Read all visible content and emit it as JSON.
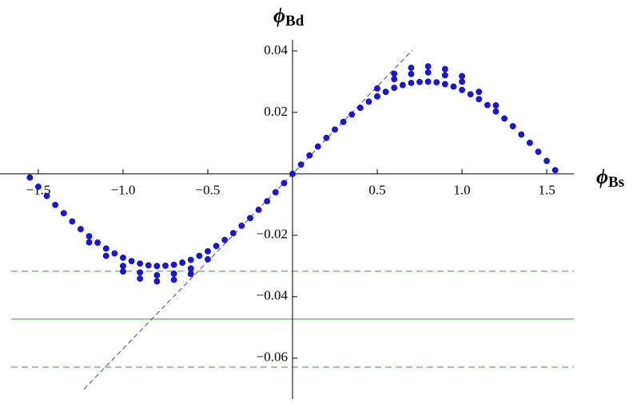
{
  "chart_data": {
    "type": "scatter",
    "x_label": {
      "symbol": "ϕ",
      "subscript": "Bs"
    },
    "y_label": {
      "symbol": "ϕ",
      "subscript": "Bd"
    },
    "xlim": [
      -1.726,
      1.66
    ],
    "ylim": [
      -0.0733,
      0.0436
    ],
    "xticks": [
      {
        "value": -1.5,
        "label": "−1.5"
      },
      {
        "value": -1.0,
        "label": "−1.0"
      },
      {
        "value": -0.5,
        "label": "−0.5"
      },
      0.5,
      {
        "value": 1.0,
        "label": "1.0"
      },
      1.5
    ],
    "yticks": [
      {
        "value": -0.06,
        "label": "−0.06"
      },
      {
        "value": -0.04,
        "label": "−0.04"
      },
      {
        "value": -0.02,
        "label": "−0.02"
      },
      0.02,
      0.04
    ],
    "series": [
      {
        "color": "#1414f0",
        "x": [
          -1.55,
          -1.5,
          -1.45,
          -1.4,
          -1.35,
          -1.3,
          -1.25,
          -1.2,
          -1.15,
          -1.1,
          -1.05,
          -1.0,
          -0.95,
          -0.9,
          -0.85,
          -0.8,
          -0.75,
          -0.7,
          -0.65,
          -0.6,
          -0.55,
          -0.5,
          -0.45,
          -0.4,
          -0.35,
          -0.3,
          -0.25,
          -0.2,
          -0.15,
          -0.1,
          -0.05,
          0,
          0.05,
          0.1,
          0.15,
          0.2,
          0.25,
          0.3,
          0.35,
          0.4,
          0.45,
          0.5,
          0.55,
          0.6,
          0.65,
          0.7,
          0.75,
          0.8,
          0.85,
          0.9,
          0.95,
          1.0,
          1.05,
          1.1,
          1.15,
          1.2,
          1.25,
          1.3,
          1.35,
          1.4,
          1.45,
          1.5,
          1.55,
          -1.2,
          -1.1,
          -1.0,
          -0.9,
          -0.8,
          -0.7,
          -0.6,
          -0.5,
          0.5,
          0.6,
          0.7,
          0.8,
          0.9,
          1.0,
          1.1,
          1.2,
          -1.0,
          -0.9,
          -0.8,
          -0.7,
          -0.6,
          0.6,
          0.7,
          0.8,
          0.9,
          1.0
        ],
        "values": [
          -0.0012,
          -0.0042,
          -0.0072,
          -0.0101,
          -0.0128,
          -0.0155,
          -0.018,
          -0.0203,
          -0.0224,
          -0.0243,
          -0.0259,
          -0.0273,
          -0.0284,
          -0.0292,
          -0.0298,
          -0.03,
          -0.0299,
          -0.0296,
          -0.0289,
          -0.028,
          -0.0267,
          -0.0252,
          -0.0235,
          -0.0215,
          -0.0193,
          -0.0169,
          -0.0144,
          -0.0117,
          -0.0089,
          -0.006,
          -0.003,
          0,
          0.003,
          0.006,
          0.0089,
          0.0117,
          0.0144,
          0.0169,
          0.0193,
          0.0215,
          0.0235,
          0.0252,
          0.0267,
          0.028,
          0.0289,
          0.0296,
          0.0299,
          0.03,
          0.0298,
          0.0292,
          0.0284,
          0.0273,
          0.0259,
          0.0243,
          0.0224,
          0.0203,
          0.018,
          0.0155,
          0.0128,
          0.0101,
          0.0072,
          0.0042,
          0.0012,
          -0.0223,
          -0.0267,
          -0.03,
          -0.0321,
          -0.033,
          -0.0325,
          -0.0308,
          -0.0278,
          0.0278,
          0.0308,
          0.0325,
          0.033,
          0.0321,
          0.03,
          0.0267,
          0.0223,
          -0.0318,
          -0.0341,
          -0.035,
          -0.0345,
          -0.0326,
          0.0326,
          0.0345,
          0.035,
          0.0341,
          0.0318
        ]
      }
    ],
    "diagonal": {
      "color": "#4040c0",
      "x": [
        -1.231,
        0.708
      ],
      "y": [
        -0.0701,
        0.0403
      ]
    },
    "hlines": [
      {
        "y": -0.0317,
        "color": "#22aa22",
        "dashed": true
      },
      {
        "y": -0.0473,
        "color": "#22aa22",
        "dashed": false
      },
      {
        "y": -0.0629,
        "color": "#22aa22",
        "dashed": true
      }
    ]
  }
}
